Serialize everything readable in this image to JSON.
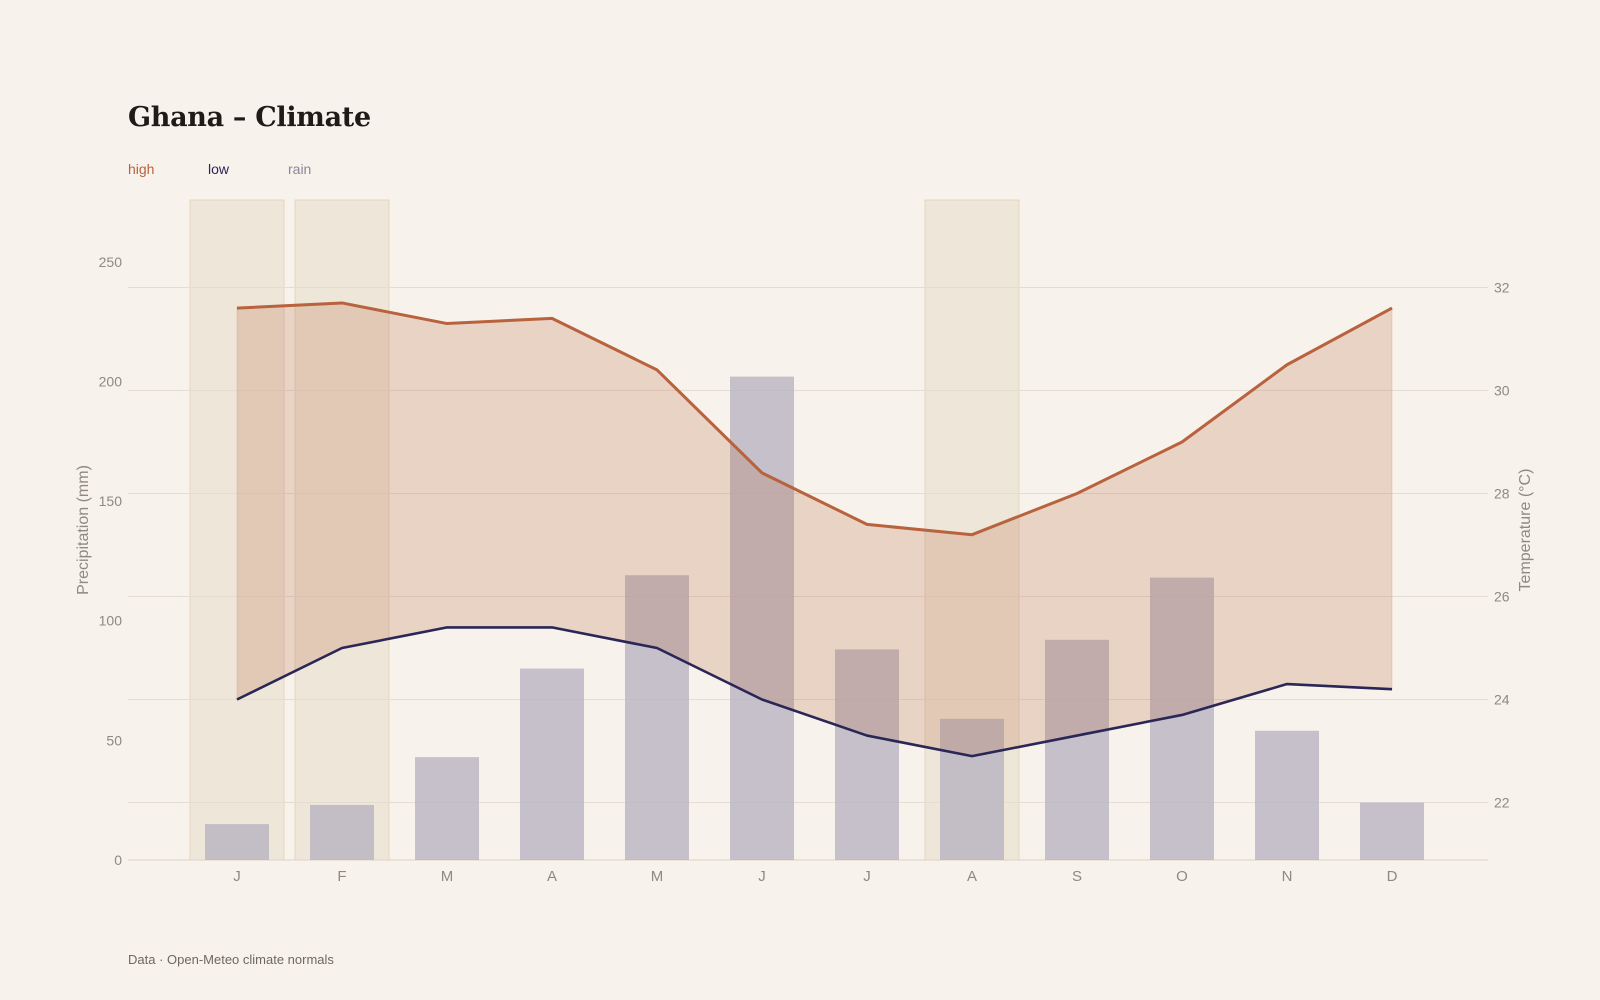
{
  "title": "Ghana – Climate",
  "source": "Data · Open-Meteo climate normals",
  "colors": {
    "background": "#f7f2eb",
    "high": "#b8623e",
    "low": "#2a2656",
    "rain": "#b7b2c0",
    "band": "#e8dcc8",
    "grid": "#e6ddd2",
    "tick": "#8f8983"
  },
  "legend": [
    {
      "key": "high",
      "label": "high",
      "color": "#b8623e"
    },
    {
      "key": "low",
      "label": "low",
      "color": "#2a2656"
    },
    {
      "key": "rain",
      "label": "rain",
      "color": "#8a86a0"
    }
  ],
  "chart_data": {
    "type": "bar",
    "categories": [
      "J",
      "F",
      "M",
      "A",
      "M",
      "J",
      "J",
      "A",
      "S",
      "O",
      "N",
      "D"
    ],
    "series": [
      {
        "name": "rain",
        "type": "bar",
        "axis": "left",
        "values": [
          15,
          23,
          43,
          80,
          119,
          202,
          88,
          59,
          92,
          118,
          54,
          24
        ]
      },
      {
        "name": "high",
        "type": "line",
        "axis": "right",
        "values": [
          31.6,
          31.7,
          31.3,
          31.4,
          30.4,
          28.4,
          27.4,
          27.2,
          28.0,
          29.0,
          30.5,
          31.6
        ]
      },
      {
        "name": "low",
        "type": "line",
        "axis": "right",
        "values": [
          24.0,
          25.0,
          25.4,
          25.4,
          25.0,
          24.0,
          23.3,
          22.9,
          23.3,
          23.7,
          24.3,
          24.2
        ]
      }
    ],
    "highlight_months": [
      0,
      1,
      7
    ],
    "ylabel": "Precipitation (mm)",
    "y2label": "Temperature (°C)",
    "ylim": [
      0,
      275
    ],
    "y2lim": [
      21,
      33
    ],
    "yticks": [
      0,
      50,
      100,
      150,
      200,
      250
    ],
    "y2ticks": [
      22,
      24,
      26,
      28,
      30,
      32
    ],
    "grid": true,
    "legend_position": "top-left"
  }
}
